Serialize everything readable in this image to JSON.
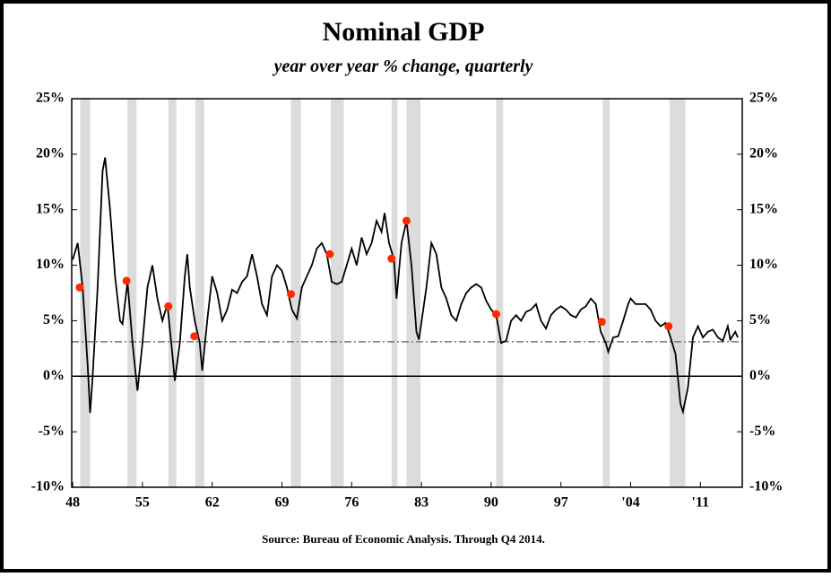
{
  "chart_data": {
    "type": "line",
    "title": "Nominal GDP",
    "subtitle": "year over year % change, quarterly",
    "source": "Source:  Bureau of Economic Analysis. Through Q4 2014.",
    "xlim": [
      1947.9,
      2015.2
    ],
    "xticks": [
      {
        "value": 1948,
        "label": "48"
      },
      {
        "value": 1955,
        "label": "55"
      },
      {
        "value": 1962,
        "label": "62"
      },
      {
        "value": 1969,
        "label": "69"
      },
      {
        "value": 1976,
        "label": "76"
      },
      {
        "value": 1983,
        "label": "83"
      },
      {
        "value": 1990,
        "label": "90"
      },
      {
        "value": 1997,
        "label": "97"
      },
      {
        "value": 2004,
        "label": "'04"
      },
      {
        "value": 2011,
        "label": "'11"
      }
    ],
    "ylim": [
      -10,
      25
    ],
    "yticks": [
      {
        "value": -10,
        "label": "-10%"
      },
      {
        "value": -5,
        "label": "-5%"
      },
      {
        "value": 0,
        "label": "0%"
      },
      {
        "value": 5,
        "label": "5%"
      },
      {
        "value": 10,
        "label": "10%"
      },
      {
        "value": 15,
        "label": "15%"
      },
      {
        "value": 20,
        "label": "20%"
      },
      {
        "value": 25,
        "label": "25%"
      }
    ],
    "y2lim": [
      -10,
      25
    ],
    "y2ticks": [
      {
        "value": -10,
        "label": "-10%"
      },
      {
        "value": -5,
        "label": "-5%"
      },
      {
        "value": 0,
        "label": "0%"
      },
      {
        "value": 5,
        "label": "5%"
      },
      {
        "value": 10,
        "label": "10%"
      },
      {
        "value": 15,
        "label": "15%"
      },
      {
        "value": 20,
        "label": "20%"
      },
      {
        "value": 25,
        "label": "25%"
      }
    ],
    "reference_line": 3.1,
    "recession_color": "#dcdcdc",
    "recessions": [
      [
        1948.75,
        1949.75
      ],
      [
        1953.5,
        1954.4
      ],
      [
        1957.6,
        1958.4
      ],
      [
        1960.3,
        1961.2
      ],
      [
        1969.9,
        1970.9
      ],
      [
        1973.9,
        1975.2
      ],
      [
        1980.0,
        1980.6
      ],
      [
        1981.5,
        1982.9
      ],
      [
        1990.5,
        1991.2
      ],
      [
        2001.2,
        2001.9
      ],
      [
        2007.9,
        2009.5
      ]
    ],
    "series": [
      {
        "color": "#000000",
        "x": [
          1948.0,
          1948.5,
          1949.0,
          1949.5,
          1949.75,
          1950.0,
          1950.5,
          1951.0,
          1951.25,
          1951.75,
          1952.25,
          1952.75,
          1953.0,
          1953.5,
          1954.0,
          1954.5,
          1955.0,
          1955.5,
          1956.0,
          1956.5,
          1957.0,
          1957.5,
          1958.0,
          1958.25,
          1958.75,
          1959.25,
          1959.5,
          1959.75,
          1960.25,
          1960.75,
          1961.0,
          1961.5,
          1962.0,
          1962.5,
          1963.0,
          1963.5,
          1964.0,
          1964.5,
          1965.0,
          1965.5,
          1966.0,
          1966.5,
          1967.0,
          1967.5,
          1968.0,
          1968.5,
          1969.0,
          1969.5,
          1970.0,
          1970.5,
          1971.0,
          1971.5,
          1972.0,
          1972.5,
          1973.0,
          1973.5,
          1974.0,
          1974.5,
          1975.0,
          1975.5,
          1976.0,
          1976.5,
          1977.0,
          1977.5,
          1978.0,
          1978.5,
          1979.0,
          1979.3,
          1979.75,
          1980.25,
          1980.5,
          1981.0,
          1981.5,
          1982.0,
          1982.5,
          1982.75,
          1983.5,
          1984.0,
          1984.5,
          1985.0,
          1985.5,
          1986.0,
          1986.5,
          1987.0,
          1987.5,
          1988.0,
          1988.5,
          1989.0,
          1989.5,
          1990.0,
          1990.5,
          1991.0,
          1991.5,
          1992.0,
          1992.5,
          1993.0,
          1993.5,
          1994.0,
          1994.5,
          1995.0,
          1995.5,
          1996.0,
          1996.5,
          1997.0,
          1997.5,
          1998.0,
          1998.5,
          1999.0,
          1999.5,
          2000.0,
          2000.5,
          2001.0,
          2001.5,
          2001.75,
          2002.25,
          2002.75,
          2003.25,
          2003.75,
          2004.0,
          2004.5,
          2005.0,
          2005.5,
          2006.0,
          2006.5,
          2007.0,
          2007.5,
          2008.0,
          2008.5,
          2009.0,
          2009.25,
          2009.75,
          2010.25,
          2010.75,
          2011.25,
          2011.75,
          2012.25,
          2012.75,
          2013.25,
          2013.75,
          2014.0,
          2014.5,
          2014.75
        ],
        "values": [
          10.5,
          12,
          8,
          1,
          -3.3,
          0,
          8,
          18.5,
          19.7,
          15,
          9,
          5,
          4.7,
          8.5,
          3,
          -1.3,
          3,
          8,
          10,
          7,
          5,
          6.5,
          2,
          -0.4,
          3,
          9,
          11,
          8,
          5,
          3,
          0.5,
          5,
          9,
          7.5,
          5,
          6,
          7.8,
          7.5,
          8.5,
          9,
          11,
          9,
          6.5,
          5.5,
          9,
          10,
          9.5,
          8,
          6,
          5.2,
          8,
          9,
          10,
          11.5,
          12,
          11,
          8.5,
          8.3,
          8.5,
          10,
          11.5,
          10,
          12.5,
          11,
          12,
          14,
          13,
          14.7,
          12,
          10.5,
          7,
          12,
          14,
          10,
          4,
          3.3,
          8,
          12,
          11,
          8,
          7,
          5.5,
          5,
          6.5,
          7.5,
          8,
          8.3,
          8,
          6.8,
          6,
          5.5,
          3,
          3.2,
          5,
          5.5,
          5,
          5.8,
          6,
          6.5,
          5,
          4.3,
          5.5,
          6,
          6.3,
          6,
          5.5,
          5.3,
          6,
          6.3,
          7,
          6.5,
          4,
          3,
          2.2,
          3.5,
          3.6,
          5,
          6.5,
          7,
          6.5,
          6.5,
          6.5,
          6,
          5,
          4.5,
          4.8,
          3.5,
          2,
          -2.5,
          -3.2,
          -1,
          3.5,
          4.5,
          3.5,
          4,
          4.2,
          3.5,
          3.2,
          4.5,
          3.3,
          4,
          3.5
        ]
      },
      {
        "color": "#ff2a00",
        "x": [
          1948.7,
          1953.4,
          1957.6,
          1960.2,
          1969.9,
          1973.8,
          1980.0,
          1981.5,
          1990.5,
          2001.1,
          2007.8
        ],
        "values": [
          8,
          8.6,
          6.3,
          3.6,
          7.4,
          11,
          10.6,
          14,
          5.6,
          4.9,
          4.5
        ]
      }
    ]
  }
}
